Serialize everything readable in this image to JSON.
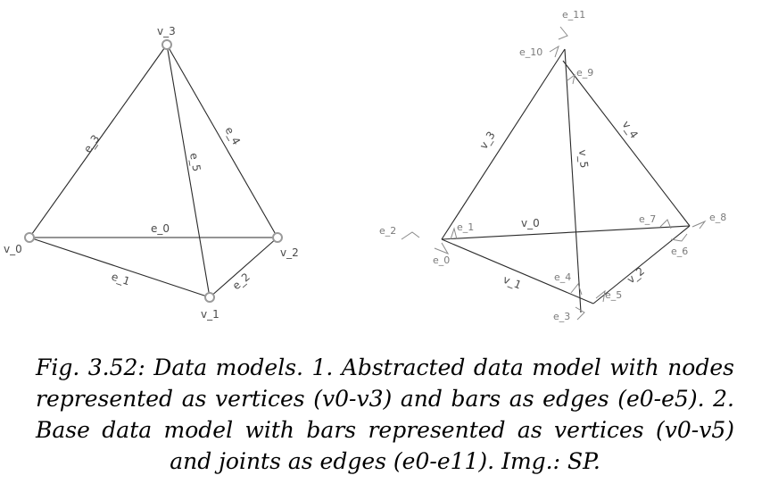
{
  "left_diagram": {
    "vertices": [
      {
        "label": "v_0"
      },
      {
        "label": "v_1"
      },
      {
        "label": "v_2"
      },
      {
        "label": "v_3"
      }
    ],
    "edges": [
      {
        "label": "e_0"
      },
      {
        "label": "e_1"
      },
      {
        "label": "e_2"
      },
      {
        "label": "e_3"
      },
      {
        "label": "e_4"
      },
      {
        "label": "e_5"
      }
    ]
  },
  "right_diagram": {
    "bars": [
      {
        "label": "v_0"
      },
      {
        "label": "v_1"
      },
      {
        "label": "v_2"
      },
      {
        "label": "v_3"
      },
      {
        "label": "v_4"
      },
      {
        "label": "v_5"
      }
    ],
    "joints": [
      {
        "label": "e_0"
      },
      {
        "label": "e_1"
      },
      {
        "label": "e_2"
      },
      {
        "label": "e_3"
      },
      {
        "label": "e_4"
      },
      {
        "label": "e_5"
      },
      {
        "label": "e_6"
      },
      {
        "label": "e_7"
      },
      {
        "label": "e_8"
      },
      {
        "label": "e_9"
      },
      {
        "label": "e_10"
      },
      {
        "label": "e_11"
      }
    ]
  },
  "caption": {
    "text": "Fig. 3.52: Data models. 1. Abstracted data model with nodes represented as vertices (v0-v3) and bars as edges (e0-e5). 2. Base data model with bars represented as vertices (v0-v5) and joints as edges (e0-e11). Img.: SP."
  }
}
